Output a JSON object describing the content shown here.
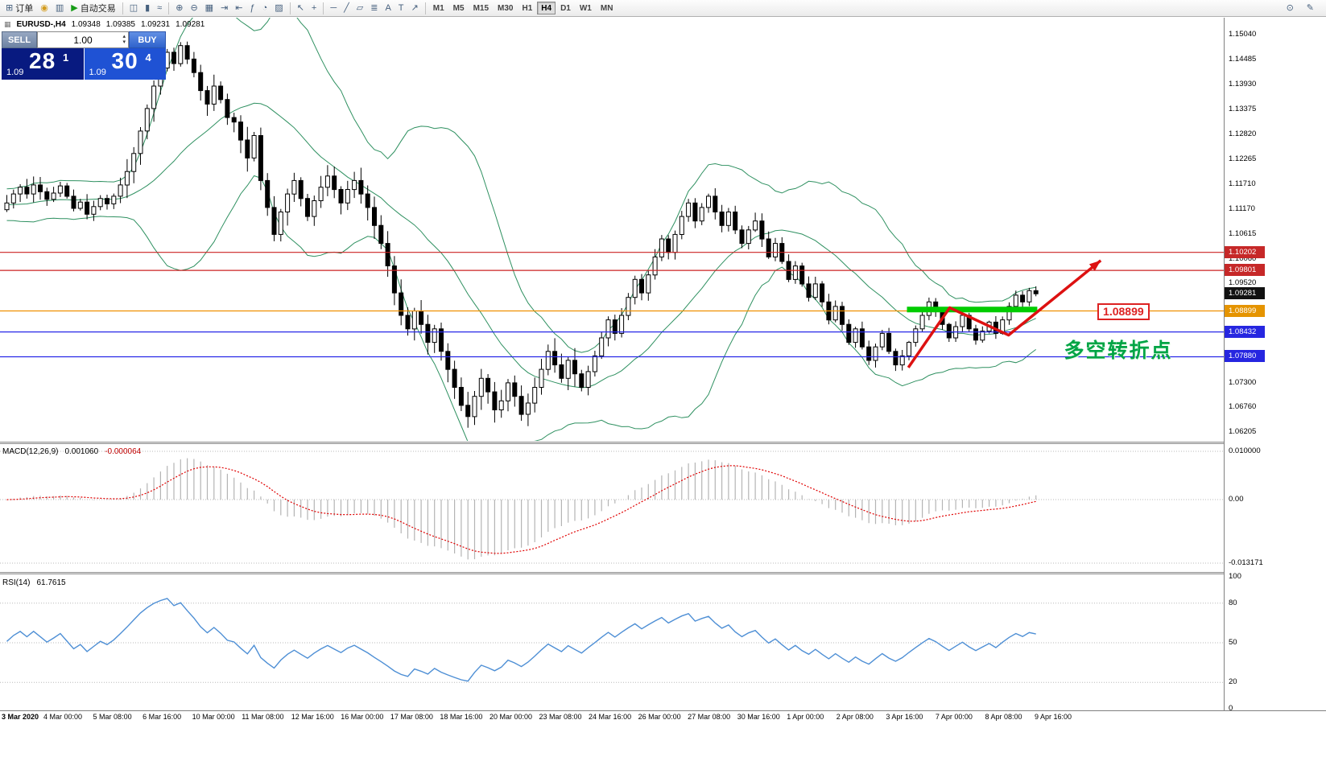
{
  "toolbar": {
    "groups": [
      {
        "items": [
          {
            "name": "new-order-button",
            "icon": "⊞",
            "label": "订单"
          },
          {
            "name": "deposit-button",
            "icon": "◉"
          },
          {
            "name": "charts-button",
            "icon": "▥"
          },
          {
            "name": "autotrading-button",
            "icon": "▶",
            "label": "自动交易"
          }
        ]
      },
      {
        "items": [
          {
            "name": "bar-chart-button",
            "icon": "◫"
          },
          {
            "name": "candlestick-chart-button",
            "icon": "▮"
          },
          {
            "name": "line-chart-button",
            "icon": "≈"
          }
        ]
      },
      {
        "items": [
          {
            "name": "zoom-in-button",
            "icon": "⊕"
          },
          {
            "name": "zoom-out-button",
            "icon": "⊖"
          },
          {
            "name": "tile-windows-button",
            "icon": "▦"
          },
          {
            "name": "auto-scroll-button",
            "icon": "⇥"
          },
          {
            "name": "chart-shift-button",
            "icon": "⇤"
          },
          {
            "name": "indicators-button",
            "icon": "ƒ"
          },
          {
            "name": "periods-button",
            "icon": "◔"
          },
          {
            "name": "templates-button",
            "icon": "▨"
          }
        ]
      },
      {
        "items": [
          {
            "name": "cursor-button",
            "icon": "↖"
          },
          {
            "name": "crosshair-button",
            "icon": "+"
          }
        ]
      },
      {
        "items": [
          {
            "name": "horizontal-line-button",
            "icon": "─"
          },
          {
            "name": "trendline-button",
            "icon": "╱"
          },
          {
            "name": "equidistant-channel-button",
            "icon": "▱"
          },
          {
            "name": "fibonacci-button",
            "icon": "≣"
          },
          {
            "name": "text-button",
            "icon": "A"
          },
          {
            "name": "text-label-button",
            "icon": "T"
          },
          {
            "name": "arrows-button",
            "icon": "↗"
          }
        ]
      }
    ],
    "timeframes": {
      "items": [
        "M1",
        "M5",
        "M15",
        "M30",
        "H1",
        "H4",
        "D1",
        "W1",
        "MN"
      ],
      "active": "H4"
    },
    "right_icons": [
      {
        "name": "search-button",
        "icon": "⊙"
      },
      {
        "name": "edit-button",
        "icon": "✎"
      }
    ]
  },
  "symbol_info": {
    "icon": "▦",
    "symbol": "EURUSD-,H4",
    "open": "1.09348",
    "high": "1.09385",
    "low": "1.09231",
    "close": "1.09281"
  },
  "trade_panel": {
    "sell_label": "SELL",
    "buy_label": "BUY",
    "lot": "1.00",
    "spin_up": "▴",
    "spin_down": "▾",
    "sell_price_prefix": "1.09",
    "sell_price_big": "28",
    "sell_price_sup": "1",
    "buy_price_prefix": "1.09",
    "buy_price_big": "30",
    "buy_price_sup": "4"
  },
  "price_scale": {
    "labels": [
      "1.15040",
      "1.14485",
      "1.13930",
      "1.13375",
      "1.12820",
      "1.12265",
      "1.11710",
      "1.11170",
      "1.10615",
      "1.10060",
      "1.09520",
      "1.07300",
      "1.06760",
      "1.06205"
    ],
    "badges": [
      {
        "text": "1.10202",
        "color": "#c62828"
      },
      {
        "text": "1.09801",
        "color": "#c62828"
      },
      {
        "text": "1.09281",
        "color": "#111111"
      },
      {
        "text": "1.08899",
        "color": "#e59400"
      },
      {
        "text": "1.08432",
        "color": "#2626e0"
      },
      {
        "text": "1.07880",
        "color": "#2626e0"
      }
    ]
  },
  "chart_data": {
    "type": "candlestick",
    "symbol": "EURUSD-",
    "timeframe": "H4",
    "current_ohlc": {
      "open": 1.09348,
      "high": 1.09385,
      "low": 1.09231,
      "close": 1.09281
    },
    "y_range": [
      1.0601,
      1.1542
    ],
    "closes": [
      1.113,
      1.115,
      1.1165,
      1.115,
      1.117,
      1.1155,
      1.1138,
      1.1152,
      1.1168,
      1.1145,
      1.1118,
      1.1132,
      1.1105,
      1.1122,
      1.114,
      1.1128,
      1.1145,
      1.117,
      1.12,
      1.124,
      1.129,
      1.134,
      1.139,
      1.143,
      1.1465,
      1.144,
      1.148,
      1.145,
      1.142,
      1.138,
      1.135,
      1.139,
      1.136,
      1.132,
      1.131,
      1.127,
      1.123,
      1.128,
      1.118,
      1.112,
      1.106,
      1.111,
      1.115,
      1.118,
      1.114,
      1.11,
      1.1135,
      1.1165,
      1.119,
      1.116,
      1.113,
      1.116,
      1.118,
      1.115,
      1.112,
      1.108,
      1.104,
      1.099,
      1.093,
      1.088,
      1.085,
      1.089,
      1.086,
      1.082,
      1.085,
      1.08,
      1.076,
      1.072,
      1.068,
      1.0655,
      1.07,
      1.074,
      1.071,
      1.067,
      1.069,
      1.073,
      1.07,
      1.066,
      1.0685,
      1.072,
      1.076,
      1.08,
      1.077,
      1.074,
      1.078,
      1.075,
      1.072,
      1.0755,
      1.079,
      1.083,
      1.087,
      1.084,
      1.088,
      1.092,
      1.096,
      1.093,
      1.097,
      1.101,
      1.105,
      1.102,
      1.106,
      1.11,
      1.113,
      1.109,
      1.112,
      1.1145,
      1.111,
      1.108,
      1.111,
      1.107,
      1.104,
      1.107,
      1.109,
      1.105,
      1.101,
      1.104,
      1.1,
      1.096,
      1.099,
      1.095,
      1.092,
      1.095,
      1.091,
      1.087,
      1.09,
      1.086,
      1.082,
      1.085,
      1.081,
      1.078,
      1.081,
      1.084,
      1.08,
      1.077,
      1.079,
      1.082,
      1.085,
      1.088,
      1.091,
      1.089,
      1.086,
      1.083,
      1.0855,
      1.088,
      1.085,
      1.0825,
      1.0845,
      1.0865,
      1.084,
      1.087,
      1.09,
      1.0925,
      1.091,
      1.0935,
      1.0928
    ],
    "hlines": [
      {
        "price": 1.10202,
        "color": "#cc2222"
      },
      {
        "price": 1.09801,
        "color": "#cc2222"
      },
      {
        "price": 1.08899,
        "color": "#f09000"
      },
      {
        "price": 1.08432,
        "color": "#2828e8"
      },
      {
        "price": 1.0788,
        "color": "#2828e8"
      }
    ],
    "indicators": [
      {
        "name": "Bollinger Bands",
        "period": 20,
        "deviation": 2
      },
      {
        "name": "MACD",
        "fast": 12,
        "slow": 26,
        "signal": 9,
        "main_value": 0.00106,
        "signal_value": -6.4e-05
      },
      {
        "name": "RSI",
        "period": 14,
        "value": 61.7615
      }
    ]
  },
  "macd_panel": {
    "label": "MACD(12,26,9)",
    "value_main": "0.001060",
    "value_signal": "-0.000064",
    "scale": [
      "0.010000",
      "0.00",
      "-0.013171"
    ]
  },
  "rsi_panel": {
    "label": "RSI(14)",
    "value": "61.7615",
    "scale": [
      "100",
      "80",
      "50",
      "20",
      "0"
    ],
    "levels": [
      80,
      50,
      20
    ]
  },
  "time_axis": {
    "labels": [
      "3 Mar 2020",
      "4 Mar 00:00",
      "5 Mar 08:00",
      "6 Mar 16:00",
      "10 Mar 00:00",
      "11 Mar 08:00",
      "12 Mar 16:00",
      "16 Mar 00:00",
      "17 Mar 08:00",
      "18 Mar 16:00",
      "20 Mar 00:00",
      "23 Mar 08:00",
      "24 Mar 16:00",
      "26 Mar 00:00",
      "27 Mar 08:00",
      "30 Mar 16:00",
      "1 Apr 00:00",
      "2 Apr 08:00",
      "3 Apr 16:00",
      "7 Apr 00:00",
      "8 Apr 08:00",
      "9 Apr 16:00"
    ]
  },
  "annotations": {
    "support_zone": {
      "type": "thick-line",
      "from_bar": 135,
      "to_bar": 154.5,
      "price": 1.0893,
      "color": "#00cc00"
    },
    "arrow": {
      "type": "zigzag-arrow",
      "color": "#dd1111",
      "points": [
        [
          135.2,
          1.0764
        ],
        [
          141.4,
          1.0897
        ],
        [
          150.2,
          1.0836
        ],
        [
          164.0,
          1.1002
        ]
      ]
    },
    "price_label": {
      "text": "1.08899",
      "bar": 163.5,
      "price": 1.08899
    },
    "cn_note": {
      "text": "多空转折点",
      "bar": 158.5,
      "price": 1.0808,
      "color": "#00a445"
    }
  }
}
